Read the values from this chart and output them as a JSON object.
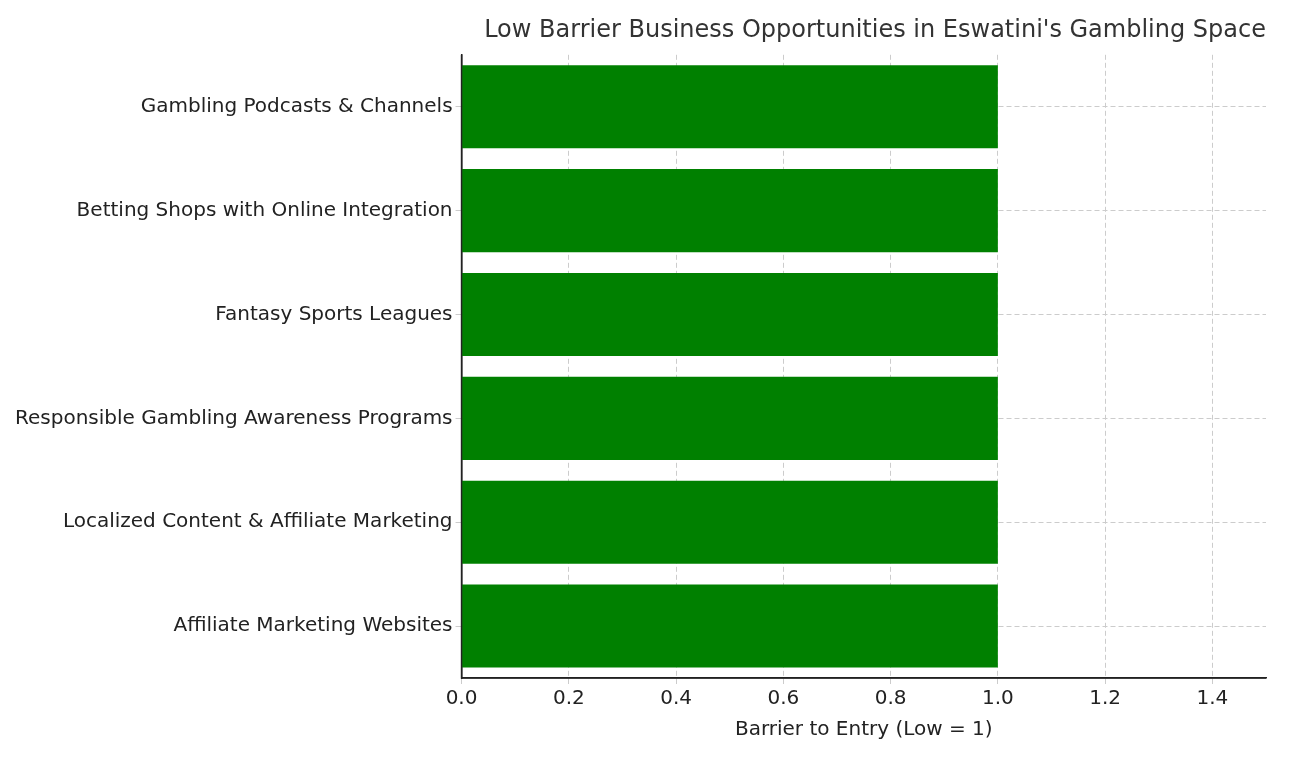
{
  "chart_data": {
    "type": "bar",
    "orientation": "horizontal",
    "title": "Low Barrier Business Opportunities in Eswatini's Gambling Space",
    "xlabel": "Barrier to Entry (Low = 1)",
    "categories": [
      "Gambling Podcasts & Channels",
      "Betting Shops with Online Integration",
      "Fantasy Sports Leagues",
      "Responsible Gambling Awareness Programs",
      "Localized Content & Affiliate Marketing",
      "Affiliate Marketing Websites"
    ],
    "values": [
      1,
      1,
      1,
      1,
      1,
      1
    ],
    "color": "#008000",
    "xlim": [
      0,
      1.5
    ],
    "xticks": [
      {
        "value": 0,
        "label": "0.0"
      },
      {
        "value": 0.2,
        "label": "0.2"
      },
      {
        "value": 0.4,
        "label": "0.4"
      },
      {
        "value": 0.6,
        "label": "0.6"
      },
      {
        "value": 0.8,
        "label": "0.8"
      },
      {
        "value": 1,
        "label": "1.0"
      },
      {
        "value": 1.2,
        "label": "1.2"
      },
      {
        "value": 1.4,
        "label": "1.4"
      }
    ],
    "grid": true
  }
}
